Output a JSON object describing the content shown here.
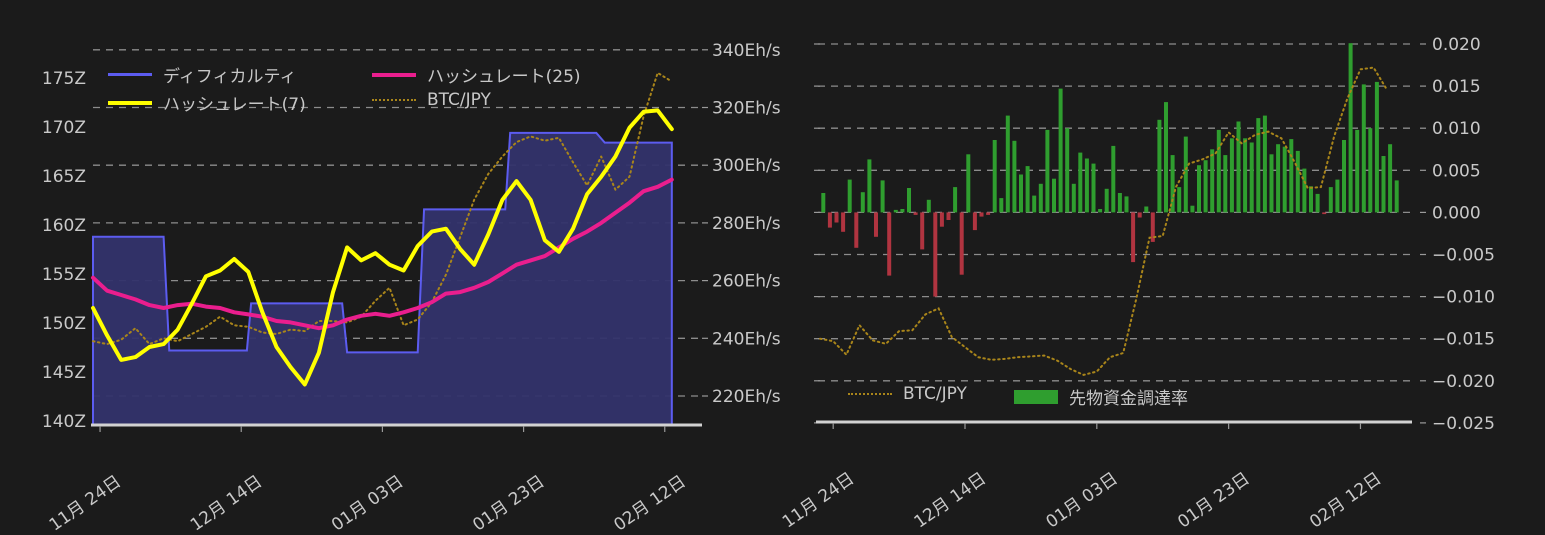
{
  "page": {
    "background": "#1b1b1b",
    "text_color": "#c8c8c8",
    "grid_color": "#ffffff"
  },
  "chart_data": [
    {
      "type": "line",
      "title": "",
      "description_visible_text_only": "difficulty step area + hashrate lines + BTC/JPY dotted overlay",
      "x_axis": {
        "tick_labels": [
          "11月 24日",
          "12月 14日",
          "01月 03日",
          "01月 23日",
          "02月 12日"
        ],
        "tick_days": [
          1,
          21,
          41,
          61,
          81
        ],
        "domain_days": [
          0,
          85
        ],
        "label_rotation_deg": -35
      },
      "y_axis_left": {
        "unit": "Z",
        "tick_labels": [
          "175Z",
          "170Z",
          "165Z",
          "160Z",
          "155Z",
          "150Z",
          "145Z",
          "140Z"
        ],
        "tick_values": [
          175,
          170,
          165,
          160,
          155,
          150,
          145,
          140
        ],
        "ylim": [
          140,
          175
        ],
        "grid": false
      },
      "y_axis_right": {
        "unit": "Eh/s",
        "tick_labels": [
          "340Eh/s",
          "320Eh/s",
          "300Eh/s",
          "280Eh/s",
          "260Eh/s",
          "240Eh/s",
          "220Eh/s"
        ],
        "tick_values": [
          340,
          320,
          300,
          280,
          260,
          240,
          220
        ],
        "ylim": [
          220,
          340
        ],
        "grid": true
      },
      "legend": [
        {
          "label": "ディフィカルティ",
          "color": "#5c5cf0",
          "style": "line"
        },
        {
          "label": "ハッシュレート(25)",
          "color": "#ea1e8e",
          "style": "line"
        },
        {
          "label": "ハッシュレート(7)",
          "color": "#ffff00",
          "style": "line"
        },
        {
          "label": "BTC/JPY",
          "color": "#a9851a",
          "style": "dotted"
        }
      ],
      "legend_position": "top-left-inside",
      "series": [
        {
          "name": "ディフィカルティ",
          "type": "step-area",
          "axis": "left",
          "unit": "Z",
          "stroke": "#5c5cf0",
          "fill": "#33336b",
          "steps": [
            {
              "from_day": 0,
              "to_day": 10.0,
              "value": 158.8
            },
            {
              "from_day": 10.8,
              "to_day": 21.8,
              "value": 147.2
            },
            {
              "from_day": 22.4,
              "to_day": 35.3,
              "value": 152.0
            },
            {
              "from_day": 36.0,
              "to_day": 46.0,
              "value": 147.0
            },
            {
              "from_day": 46.9,
              "to_day": 58.4,
              "value": 161.6
            },
            {
              "from_day": 59.1,
              "to_day": 71.3,
              "value": 169.4
            },
            {
              "from_day": 72.5,
              "to_day": 82.0,
              "value": 168.4
            }
          ]
        },
        {
          "name": "ハッシュレート(25)",
          "type": "line",
          "axis": "right",
          "unit": "Eh/s",
          "stroke": "#ea1e8e",
          "x_start_day": 0,
          "x_day_step": 2,
          "values": [
            261,
            256.5,
            255,
            253.5,
            251.5,
            250.5,
            251.5,
            252,
            251,
            250.5,
            249,
            248.3,
            247.5,
            246,
            245.5,
            244.5,
            243.5,
            244.5,
            246.5,
            247.8,
            248.5,
            247.8,
            249,
            250.5,
            252.5,
            255.5,
            256,
            257.5,
            259.5,
            262.5,
            265.5,
            267,
            268.5,
            271.5,
            274.5,
            277,
            280,
            283.5,
            287,
            291,
            292.5,
            295
          ]
        },
        {
          "name": "ハッシュレート(7)",
          "type": "line",
          "axis": "right",
          "unit": "Eh/s",
          "stroke": "#ffff00",
          "x_start_day": 0,
          "x_day_step": 2,
          "values": [
            250.5,
            241,
            232.5,
            233.5,
            237,
            238,
            243,
            252,
            261.5,
            263.5,
            267.5,
            263,
            249,
            237,
            230,
            224,
            235,
            256,
            271.5,
            267,
            269.5,
            265.5,
            263.5,
            272,
            277,
            278,
            271,
            265.5,
            276,
            288,
            294.5,
            288,
            274,
            270,
            278,
            290,
            296,
            303,
            313,
            318.5,
            319,
            312.5
          ]
        },
        {
          "name": "BTC/JPY",
          "type": "dotted-line",
          "axis": "right-scale-overlay",
          "stroke": "#a9851a",
          "x_start_day": 0,
          "x_day_step": 2,
          "values": [
            239,
            238,
            239.5,
            243.5,
            238,
            240,
            239,
            241.5,
            244,
            247.5,
            244.5,
            244,
            242,
            241.5,
            243,
            242.5,
            246,
            246,
            245.5,
            247.5,
            253,
            257.5,
            244.5,
            246.5,
            252.5,
            262,
            275,
            288,
            297,
            303,
            308,
            310,
            308.5,
            309.5,
            301,
            293,
            303,
            291.5,
            296,
            317,
            332,
            329
          ]
        }
      ]
    },
    {
      "type": "bar",
      "title": "",
      "x_axis": {
        "tick_labels": [
          "11月 24日",
          "12月 14日",
          "01月 03日",
          "01月 23日",
          "02月 12日"
        ],
        "tick_days": [
          2,
          22,
          42,
          62,
          82
        ],
        "domain_days": [
          0,
          88
        ],
        "label_rotation_deg": -35
      },
      "y_axis_right": {
        "unit": "",
        "tick_labels": [
          "0.020",
          "0.015",
          "0.010",
          "0.005",
          "0.000",
          "−0.005",
          "−0.010",
          "−0.015",
          "−0.020",
          "−0.025"
        ],
        "tick_values": [
          0.02,
          0.015,
          0.01,
          0.005,
          0.0,
          -0.005,
          -0.01,
          -0.015,
          -0.02,
          -0.025
        ],
        "ylim": [
          -0.025,
          0.02
        ],
        "grid": true
      },
      "legend": [
        {
          "label": "BTC/JPY",
          "color": "#a9851a",
          "style": "dotted"
        },
        {
          "label": "先物資金調達率",
          "color": "#2f9e2f",
          "style": "rect"
        }
      ],
      "legend_position": "bottom-inside",
      "series": [
        {
          "name": "BTC/JPY",
          "type": "dotted-line",
          "stroke": "#a9851a",
          "x_start_day": 0,
          "x_day_step": 2,
          "values": [
            -0.015,
            -0.0153,
            -0.0169,
            -0.0134,
            -0.0152,
            -0.0156,
            -0.0141,
            -0.014,
            -0.0121,
            -0.0114,
            -0.0148,
            -0.016,
            -0.0172,
            -0.0175,
            -0.0174,
            -0.0172,
            -0.0171,
            -0.017,
            -0.0176,
            -0.0186,
            -0.0193,
            -0.0189,
            -0.0172,
            -0.0167,
            -0.0102,
            -0.003,
            -0.0028,
            0.003,
            0.0058,
            0.0063,
            0.007,
            0.0095,
            0.0082,
            0.0092,
            0.0096,
            0.0088,
            0.006,
            0.0029,
            0.003,
            0.009,
            0.0135,
            0.017,
            0.0172,
            0.0146
          ]
        },
        {
          "name": "先物資金調達率",
          "type": "bar",
          "color_positive": "#2f9e2f",
          "color_negative": "#b03440",
          "values": [
            0.0023,
            -0.0018,
            -0.0012,
            -0.0023,
            0.0039,
            -0.0042,
            0.0024,
            0.0063,
            -0.0029,
            0.0038,
            -0.0075,
            0.0003,
            0.0004,
            0.0029,
            -0.0003,
            -0.0044,
            0.0015,
            -0.01,
            -0.0017,
            -0.0009,
            0.003,
            -0.0074,
            0.0069,
            -0.0021,
            -0.0005,
            -0.0003,
            0.0086,
            0.0017,
            0.0115,
            0.0085,
            0.0045,
            0.0055,
            0.002,
            0.0034,
            0.0098,
            0.004,
            0.0147,
            0.01,
            0.0034,
            0.0071,
            0.0064,
            0.0058,
            0.0004,
            0.0028,
            0.0079,
            0.0023,
            0.0019,
            -0.0059,
            -0.0006,
            0.0007,
            -0.0035,
            0.011,
            0.0131,
            0.0068,
            0.003,
            0.009,
            0.0008,
            0.0056,
            0.0062,
            0.0075,
            0.0098,
            0.0068,
            0.0088,
            0.0108,
            0.0088,
            0.0083,
            0.0112,
            0.0115,
            0.0069,
            0.0081,
            0.0078,
            0.0087,
            0.0073,
            0.0052,
            0.0031,
            0.0022,
            -0.0002,
            0.003,
            0.0039,
            0.0086,
            0.0201,
            0.0098,
            0.0152,
            0.01,
            0.0155,
            0.0067,
            0.0081,
            0.0038
          ]
        }
      ]
    }
  ]
}
